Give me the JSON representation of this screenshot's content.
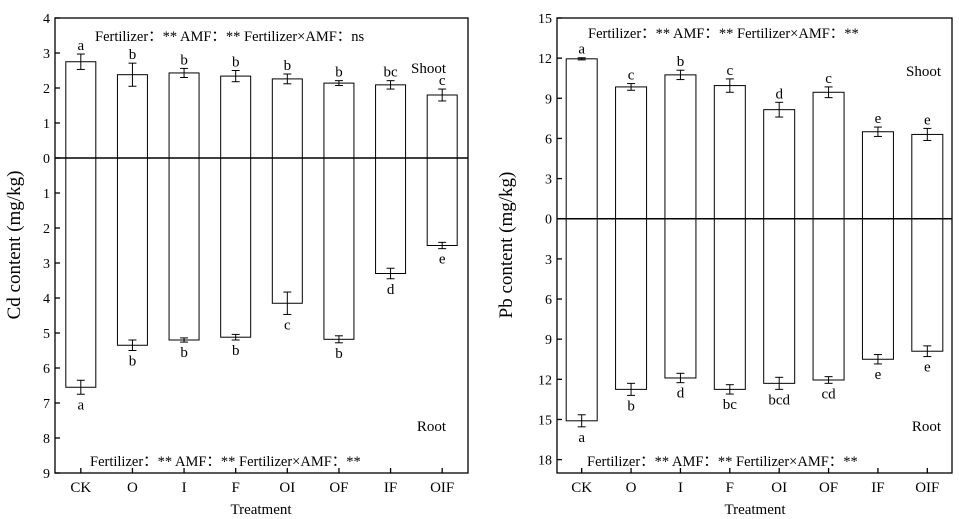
{
  "chart_data": [
    {
      "type": "bar",
      "ylabel": "Cd content (mg/kg)",
      "xlabel": "Treatment",
      "categories": [
        "CK",
        "O",
        "I",
        "F",
        "OI",
        "OF",
        "IF",
        "OIF"
      ],
      "shoot": {
        "label": "Shoot",
        "stats": "Fertilizer：** AMF：** Fertilizer×AMF：ns",
        "values": [
          2.75,
          2.38,
          2.43,
          2.34,
          2.26,
          2.14,
          2.09,
          1.8
        ],
        "errors": [
          0.22,
          0.33,
          0.13,
          0.16,
          0.14,
          0.07,
          0.12,
          0.17
        ],
        "letters": [
          "a",
          "b",
          "b",
          "b",
          "b",
          "b",
          "bc",
          "c"
        ]
      },
      "root": {
        "label": "Root",
        "stats": "Fertilizer：** AMF：** Fertilizer×AMF：**",
        "values": [
          6.55,
          5.35,
          5.2,
          5.12,
          4.15,
          5.18,
          3.3,
          2.5
        ],
        "errors": [
          0.2,
          0.15,
          0.06,
          0.08,
          0.32,
          0.1,
          0.15,
          0.09
        ],
        "letters": [
          "a",
          "b",
          "b",
          "b",
          "c",
          "b",
          "d",
          "e"
        ]
      },
      "ylim": [
        -9,
        4
      ],
      "ytick_values": [
        4,
        3,
        2,
        1,
        0,
        -1,
        -2,
        -3,
        -4,
        -5,
        -6,
        -7,
        -8,
        -9
      ],
      "ytick_labels": [
        "4",
        "3",
        "2",
        "1",
        "0",
        "1",
        "2",
        "3",
        "4",
        "5",
        "6",
        "7",
        "8",
        "9"
      ]
    },
    {
      "type": "bar",
      "ylabel": "Pb content (mg/kg)",
      "xlabel": "Treatment",
      "categories": [
        "CK",
        "O",
        "I",
        "F",
        "OI",
        "OF",
        "IF",
        "OIF"
      ],
      "shoot": {
        "label": "Shoot",
        "stats": "Fertilizer：** AMF：** Fertilizer×AMF：**",
        "values": [
          11.95,
          9.85,
          10.75,
          9.95,
          8.15,
          9.45,
          6.5,
          6.3
        ],
        "errors": [
          0.08,
          0.25,
          0.35,
          0.5,
          0.55,
          0.4,
          0.35,
          0.45
        ],
        "letters": [
          "a",
          "c",
          "b",
          "c",
          "d",
          "c",
          "e",
          "e"
        ]
      },
      "root": {
        "label": "Root",
        "stats": "Fertilizer：** AMF：** Fertilizer×AMF：**",
        "values": [
          15.1,
          12.75,
          11.9,
          12.75,
          12.3,
          12.05,
          10.5,
          9.9
        ],
        "errors": [
          0.45,
          0.45,
          0.35,
          0.35,
          0.45,
          0.25,
          0.35,
          0.4
        ],
        "letters": [
          "a",
          "b",
          "d",
          "bc",
          "bcd",
          "cd",
          "e",
          "e"
        ]
      },
      "ylim": [
        -19,
        15
      ],
      "ytick_values": [
        15,
        12,
        9,
        6,
        3,
        0,
        -3,
        -6,
        -9,
        -12,
        -15,
        -18
      ],
      "ytick_labels": [
        "15",
        "12",
        "9",
        "6",
        "3",
        "0",
        "3",
        "6",
        "9",
        "12",
        "15",
        "18"
      ]
    }
  ]
}
